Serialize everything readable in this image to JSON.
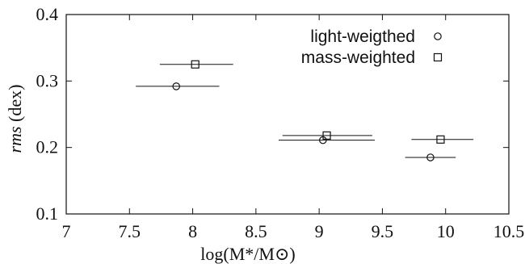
{
  "chart_data": {
    "type": "scatter",
    "xlim": [
      7,
      10.5
    ],
    "ylim": [
      0.1,
      0.4
    ],
    "xticks": [
      7,
      7.5,
      8,
      8.5,
      9,
      9.5,
      10,
      10.5
    ],
    "xtick_labels": [
      "7",
      "7.5",
      "8",
      "8.5",
      "9",
      "9.5",
      "10",
      "10.5"
    ],
    "yticks": [
      0.1,
      0.2,
      0.3,
      0.4
    ],
    "ytick_labels": [
      "0.1",
      "0.2",
      "0.3",
      "0.4"
    ],
    "xlabel": "log(M*/M⊙)",
    "ylabel_italic": "rms",
    "ylabel_rest": " (dex)",
    "grid": false,
    "legend_position": "top-right",
    "series": [
      {
        "name": "light-weigthed",
        "marker": "circle",
        "points": [
          {
            "x": 7.87,
            "y": 0.292,
            "xerr": [
              7.55,
              8.21
            ]
          },
          {
            "x": 9.03,
            "y": 0.211,
            "xerr": [
              8.68,
              9.44
            ]
          },
          {
            "x": 9.88,
            "y": 0.185,
            "xerr": [
              9.68,
              10.08
            ]
          }
        ]
      },
      {
        "name": "mass-weighted",
        "marker": "square",
        "points": [
          {
            "x": 8.02,
            "y": 0.325,
            "xerr": [
              7.74,
              8.32
            ]
          },
          {
            "x": 9.06,
            "y": 0.218,
            "xerr": [
              8.71,
              9.42
            ]
          },
          {
            "x": 9.96,
            "y": 0.212,
            "xerr": [
              9.73,
              10.22
            ]
          }
        ]
      }
    ]
  }
}
